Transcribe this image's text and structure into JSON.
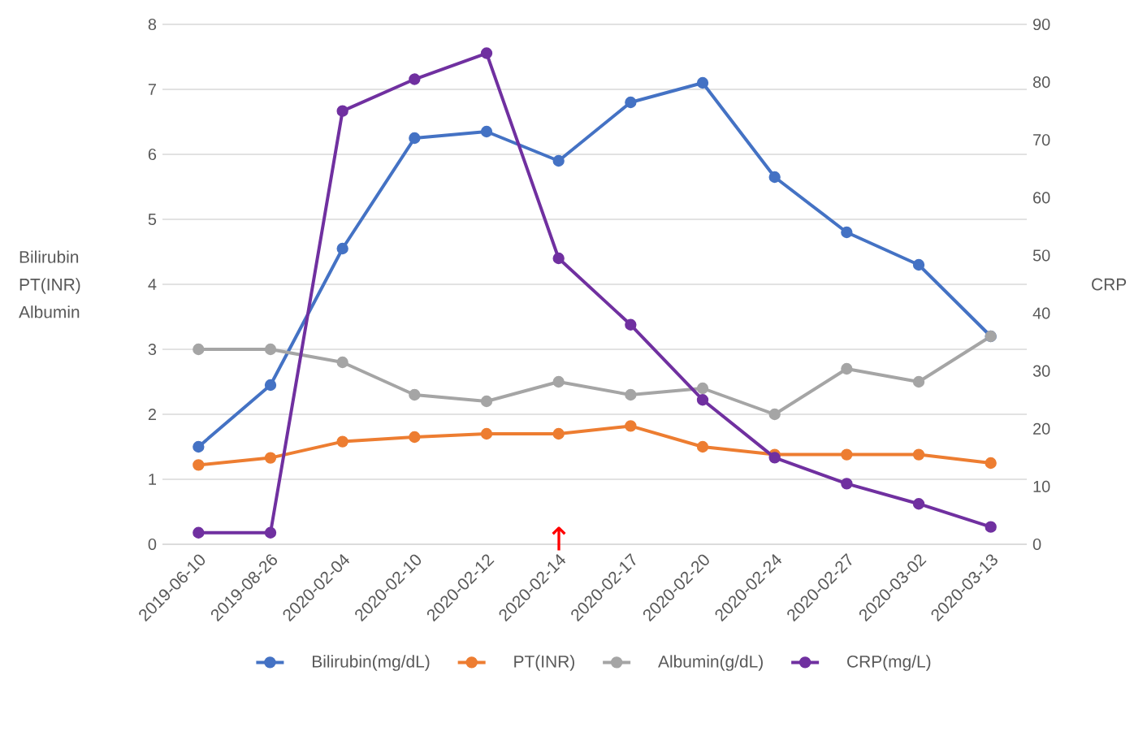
{
  "chart_data": {
    "type": "line",
    "ylabel": "Bilirubin PT(INR) Albumin",
    "y2label": "CRP",
    "categories": [
      "2019-06-10",
      "2019-08-26",
      "2020-02-04",
      "2020-02-10",
      "2020-02-12",
      "2020-02-14",
      "2020-02-17",
      "2020-02-20",
      "2020-02-24",
      "2020-02-27",
      "2020-03-02",
      "2020-03-13"
    ],
    "series": [
      {
        "name": "Bilirubin(mg/dL)",
        "color": "#4472c4",
        "values": [
          1.5,
          2.45,
          4.55,
          6.25,
          6.35,
          5.9,
          6.8,
          7.1,
          5.65,
          4.8,
          4.3,
          3.2
        ]
      },
      {
        "name": "PT(INR)",
        "color": "#ed7d31",
        "values": [
          1.22,
          1.33,
          1.58,
          1.65,
          1.7,
          1.7,
          1.82,
          1.5,
          1.38,
          1.38,
          1.38,
          1.25
        ]
      },
      {
        "name": "Albumin(g/dL)",
        "color": "#a5a5a5",
        "values": [
          3.0,
          3.0,
          2.8,
          2.3,
          2.2,
          2.5,
          2.3,
          2.4,
          2.0,
          2.7,
          2.5,
          3.2
        ]
      },
      {
        "name": "CRP(mg/L)",
        "color": "#7030a0",
        "axis": "y2",
        "values": [
          2,
          2,
          75,
          80.5,
          85,
          49.5,
          38,
          25,
          15,
          10.5,
          7,
          3
        ]
      }
    ],
    "ylim": [
      0,
      8
    ],
    "yticks": [
      0,
      1,
      2,
      3,
      4,
      5,
      6,
      7,
      8
    ],
    "y2lim": [
      0,
      90
    ],
    "y2ticks": [
      0,
      10,
      20,
      30,
      40,
      50,
      60,
      70,
      80,
      90
    ],
    "annotations": [
      "↑"
    ],
    "grid": "y",
    "legend": "bottom",
    "marker": "circle",
    "line_style": "solid"
  }
}
